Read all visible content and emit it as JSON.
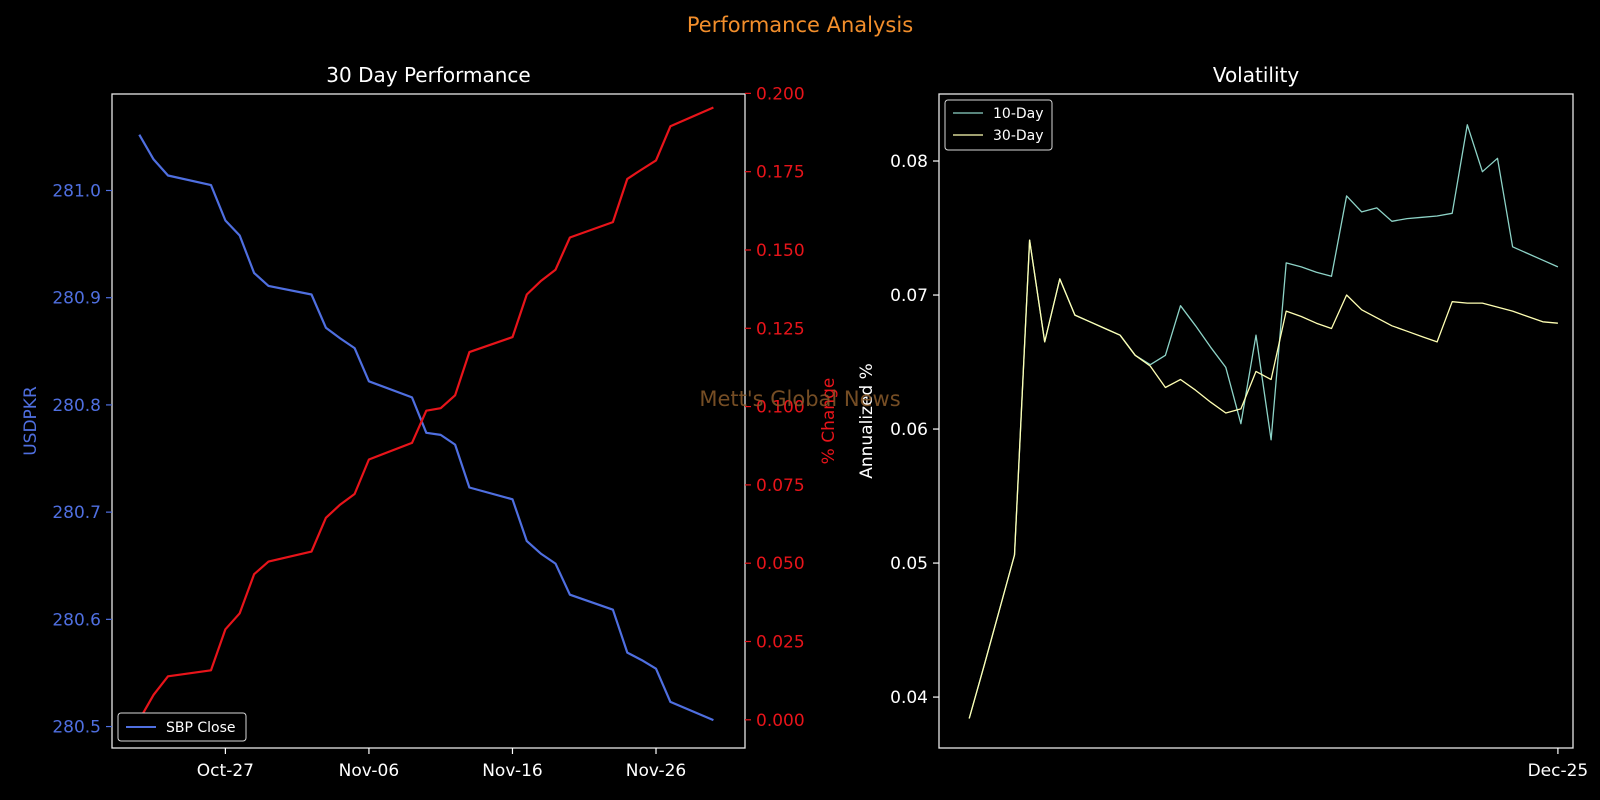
{
  "page": {
    "suptitle": "Performance Analysis",
    "watermark": "Mett's Global News"
  },
  "colors": {
    "background": "#000000",
    "axes_frame": "#e8e8e8",
    "text": "#ffffff",
    "suptitle": "#f28e2b",
    "primary_series": "#4f6fe0",
    "secondary_series": "#e8141a",
    "vol10": "#8dd3c7",
    "vol30": "#ffffb3",
    "watermark": "#8a5a2a"
  },
  "chart_data": [
    {
      "type": "line",
      "title": "30 Day Performance",
      "xlabel": "",
      "ylabel": "USDPKR",
      "y2label": "% Change",
      "xticks": [
        "Oct-27",
        "Nov-06",
        "Nov-16",
        "Nov-26"
      ],
      "xtick_days": [
        7,
        17,
        27,
        37
      ],
      "xlim": [
        -0.9,
        43.2
      ],
      "ylim": [
        280.48,
        281.09
      ],
      "yticks": [
        "280.5",
        "280.6",
        "280.7",
        "280.8",
        "280.9",
        "281.0"
      ],
      "ytick_values": [
        280.5,
        280.6,
        280.7,
        280.8,
        280.9,
        281.0
      ],
      "y2lim": [
        -0.009,
        0.1998
      ],
      "y2ticks": [
        "0.000",
        "0.025",
        "0.050",
        "0.075",
        "0.100",
        "0.125",
        "0.150",
        "0.175",
        "0.200"
      ],
      "y2tick_values": [
        0,
        0.025,
        0.05,
        0.075,
        0.1,
        0.125,
        0.15,
        0.175,
        0.2
      ],
      "legend": {
        "position": "lower-left",
        "entries": [
          "SBP Close"
        ]
      },
      "series": [
        {
          "name": "SBP Close",
          "axis": "left",
          "x": [
            1,
            2,
            3,
            6,
            7,
            8,
            9,
            10,
            13,
            14,
            15,
            16,
            17,
            20,
            21,
            22,
            23,
            24,
            27,
            28,
            29,
            30,
            31,
            34,
            35,
            36,
            37,
            38,
            41
          ],
          "values": [
            281.052,
            281.029,
            281.014,
            281.005,
            280.972,
            280.958,
            280.923,
            280.911,
            280.903,
            280.872,
            280.862,
            280.853,
            280.822,
            280.807,
            280.774,
            280.772,
            280.763,
            280.723,
            280.712,
            280.673,
            280.661,
            280.652,
            280.623,
            280.609,
            280.569,
            280.562,
            280.554,
            280.523,
            280.506
          ]
        },
        {
          "name": "% Change",
          "axis": "right",
          "x": [
            1,
            2,
            3,
            6,
            7,
            8,
            9,
            10,
            13,
            14,
            15,
            16,
            17,
            20,
            21,
            22,
            23,
            24,
            27,
            28,
            29,
            30,
            31,
            34,
            35,
            36,
            37,
            38,
            41
          ],
          "values": [
            0.0,
            0.008,
            0.0139,
            0.0158,
            0.0289,
            0.034,
            0.0465,
            0.0505,
            0.0537,
            0.0645,
            0.0687,
            0.0721,
            0.0831,
            0.0884,
            0.0987,
            0.0995,
            0.1036,
            0.1174,
            0.1222,
            0.1358,
            0.1402,
            0.1437,
            0.154,
            0.1589,
            0.1727,
            0.1757,
            0.1786,
            0.1895,
            0.1955
          ]
        }
      ]
    },
    {
      "type": "line",
      "title": "Volatility",
      "xlabel": "",
      "ylabel": "Annualized %",
      "xticks": [
        "Dec-25"
      ],
      "xtick_index": [
        39
      ],
      "xlim": [
        -2,
        40
      ],
      "ylim": [
        0.0362,
        0.085
      ],
      "yticks": [
        "0.04",
        "0.05",
        "0.06",
        "0.07",
        "0.08"
      ],
      "ytick_values": [
        0.04,
        0.05,
        0.06,
        0.07,
        0.08
      ],
      "legend": {
        "position": "top-left",
        "entries": [
          "10-Day",
          "30-Day"
        ]
      },
      "series": [
        {
          "name": "10-Day",
          "x": [
            0,
            1,
            2,
            3,
            4,
            5,
            6,
            7,
            8,
            9,
            10,
            11,
            12,
            13,
            14,
            15,
            16,
            17,
            18,
            19,
            20,
            21,
            22,
            23,
            24,
            25,
            26,
            27,
            28,
            29,
            30,
            31,
            32,
            33,
            34,
            35,
            36,
            37,
            38,
            39
          ],
          "values": [
            0.0384,
            0.0424,
            0.0465,
            0.0506,
            0.0741,
            0.0665,
            0.0712,
            0.0685,
            0.068,
            0.0675,
            0.067,
            0.0655,
            0.0648,
            0.0655,
            0.0692,
            0.0677,
            0.0661,
            0.0646,
            0.0604,
            0.067,
            0.0592,
            0.0724,
            0.0721,
            0.0717,
            0.0714,
            0.0774,
            0.0762,
            0.0765,
            0.0755,
            0.0757,
            0.0758,
            0.0759,
            0.0761,
            0.0827,
            0.0792,
            0.0802,
            0.0736,
            0.0731,
            0.0726,
            0.0721
          ]
        },
        {
          "name": "30-Day",
          "x": [
            0,
            1,
            2,
            3,
            4,
            5,
            6,
            7,
            8,
            9,
            10,
            11,
            12,
            13,
            14,
            15,
            16,
            17,
            18,
            19,
            20,
            21,
            22,
            23,
            24,
            25,
            26,
            27,
            28,
            29,
            30,
            31,
            32,
            33,
            34,
            35,
            36,
            37,
            38,
            39
          ],
          "values": [
            0.0384,
            0.0424,
            0.0465,
            0.0506,
            0.0741,
            0.0665,
            0.0712,
            0.0685,
            0.068,
            0.0675,
            0.067,
            0.0655,
            0.0647,
            0.0631,
            0.0637,
            0.0629,
            0.062,
            0.0612,
            0.0615,
            0.0643,
            0.0637,
            0.0688,
            0.0684,
            0.0679,
            0.0675,
            0.07,
            0.0689,
            0.0683,
            0.0677,
            0.0673,
            0.0669,
            0.0665,
            0.0695,
            0.0694,
            0.0694,
            0.0691,
            0.0688,
            0.0684,
            0.068,
            0.0679
          ]
        }
      ]
    }
  ]
}
